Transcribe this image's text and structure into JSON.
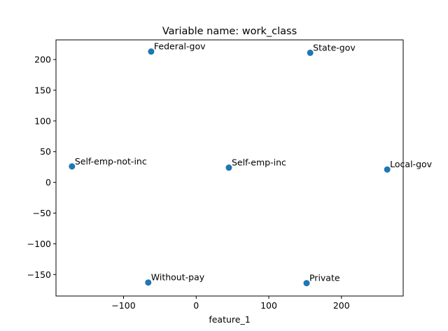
{
  "chart_data": {
    "type": "scatter",
    "title": "Variable name: work_class",
    "xlabel": "feature_1",
    "ylabel": "",
    "xlim": [
      -193,
      285
    ],
    "ylim": [
      -185,
      232
    ],
    "xticks": [
      -100,
      0,
      100,
      200
    ],
    "yticks": [
      -150,
      -100,
      -50,
      0,
      50,
      100,
      150,
      200
    ],
    "grid": false,
    "legend": "none",
    "marker_color": "#1f77b4",
    "points": [
      {
        "label": "Federal-gov",
        "x": -62,
        "y": 213
      },
      {
        "label": "State-gov",
        "x": 157,
        "y": 211
      },
      {
        "label": "Self-emp-not-inc",
        "x": -171,
        "y": 26
      },
      {
        "label": "Self-emp-inc",
        "x": 45,
        "y": 24
      },
      {
        "label": "Local-gov",
        "x": 263,
        "y": 21
      },
      {
        "label": "Without-pay",
        "x": -66,
        "y": -163
      },
      {
        "label": "Private",
        "x": 152,
        "y": -164
      }
    ]
  }
}
